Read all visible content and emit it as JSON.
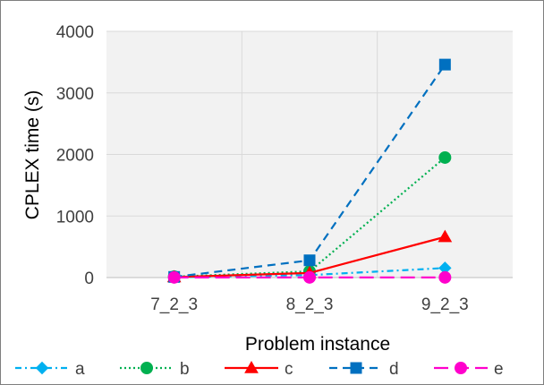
{
  "chart_data": {
    "type": "line",
    "title": "",
    "xlabel": "Problem instance",
    "ylabel": "CPLEX time (s)",
    "categories": [
      "7_2_3",
      "8_2_3",
      "9_2_3"
    ],
    "ylim": [
      0,
      4000
    ],
    "yticks": [
      0,
      1000,
      2000,
      3000,
      4000
    ],
    "grid": true,
    "legend_position": "bottom",
    "plot_background": "#f2f2f2",
    "series": [
      {
        "name": "a",
        "values": [
          5,
          40,
          155
        ],
        "color": "#00b0f0",
        "marker": "diamond",
        "dash": "dash-dot"
      },
      {
        "name": "b",
        "values": [
          15,
          100,
          1950
        ],
        "color": "#00b050",
        "marker": "circle",
        "dash": "dotted"
      },
      {
        "name": "c",
        "values": [
          8,
          75,
          660
        ],
        "color": "#ff0000",
        "marker": "triangle",
        "dash": "solid"
      },
      {
        "name": "d",
        "values": [
          10,
          280,
          3460
        ],
        "color": "#0070c0",
        "marker": "square",
        "dash": "dashed"
      },
      {
        "name": "e",
        "values": [
          2,
          2,
          2
        ],
        "color": "#ff00cc",
        "marker": "circle",
        "dash": "long-dash"
      }
    ]
  }
}
